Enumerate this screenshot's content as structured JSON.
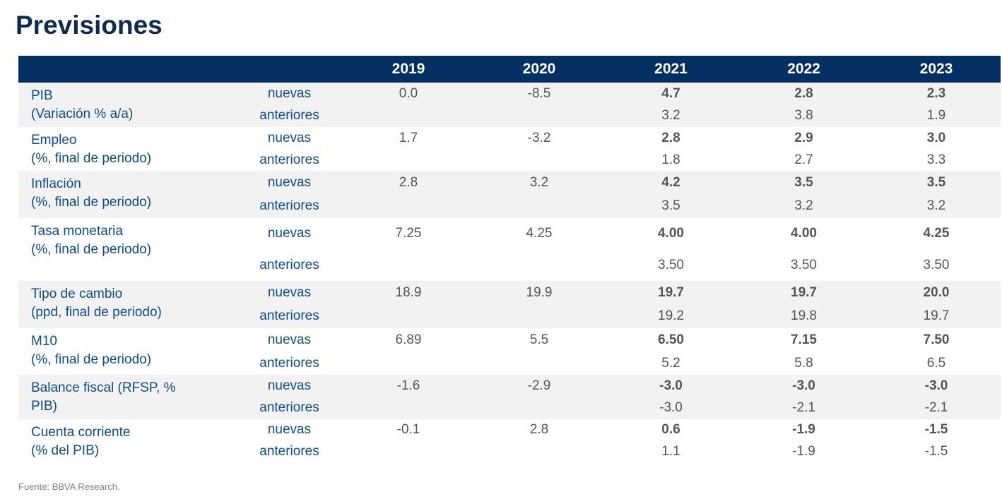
{
  "title": "Previsiones",
  "header": {
    "years": [
      "2019",
      "2020",
      "2021",
      "2022",
      "2023"
    ]
  },
  "row_kinds": {
    "new": "nuevas",
    "old": "anteriores"
  },
  "rows": [
    {
      "label1": "PIB",
      "label2": "(Variación % a/a)",
      "nuevas": [
        "0.0",
        "-8.5",
        "4.7",
        "2.8",
        "2.3"
      ],
      "anteriores": [
        "",
        "",
        "3.2",
        "3.8",
        "1.9"
      ]
    },
    {
      "label1": "Empleo",
      "label2": "(%, final de periodo)",
      "nuevas": [
        "1.7",
        "-3.2",
        "2.8",
        "2.9",
        "3.0"
      ],
      "anteriores": [
        "",
        "",
        "1.8",
        "2.7",
        "3.3"
      ]
    },
    {
      "label1": "Inflación",
      "label2": "(%, final de periodo)",
      "nuevas": [
        "2.8",
        "3.2",
        "4.2",
        "3.5",
        "3.5"
      ],
      "anteriores": [
        "",
        "",
        "3.5",
        "3.2",
        "3.2"
      ]
    },
    {
      "label1": "Tasa monetaria",
      "label2": "(%, final de periodo)",
      "nuevas": [
        "7.25",
        "4.25",
        "4.00",
        "4.00",
        "4.25"
      ],
      "anteriores": [
        "",
        "",
        "3.50",
        "3.50",
        "3.50"
      ]
    },
    {
      "label1": "Tipo de cambio",
      "label2": "(ppd, final de periodo)",
      "nuevas": [
        "18.9",
        "19.9",
        "19.7",
        "19.7",
        "20.0"
      ],
      "anteriores": [
        "",
        "",
        "19.2",
        "19.8",
        "19.7"
      ]
    },
    {
      "label1": "M10",
      "label2": "(%, final de periodo)",
      "nuevas": [
        "6.89",
        "5.5",
        "6.50",
        "7.15",
        "7.50"
      ],
      "anteriores": [
        "",
        "",
        "5.2",
        "5.8",
        "6.5"
      ]
    },
    {
      "label1": "Balance fiscal (RFSP, %",
      "label2": "PIB)",
      "nuevas": [
        "-1.6",
        "-2.9",
        "-3.0",
        "-3.0",
        "-3.0"
      ],
      "anteriores": [
        "",
        "",
        "-3.0",
        "-2.1",
        "-2.1"
      ]
    },
    {
      "label1": "Cuenta corriente",
      "label2": "(% del PIB)",
      "nuevas": [
        "-0.1",
        "2.8",
        "0.6",
        "-1.9",
        "-1.5"
      ],
      "anteriores": [
        "",
        "",
        "1.1",
        "-1.9",
        "-1.5"
      ]
    }
  ],
  "source": "Fuente: BBVA Research.",
  "colors": {
    "header_bg": "#042f63",
    "label_text": "#0e4c8b",
    "title_text": "#0e2a4f",
    "shade": "#f2f2f2"
  }
}
